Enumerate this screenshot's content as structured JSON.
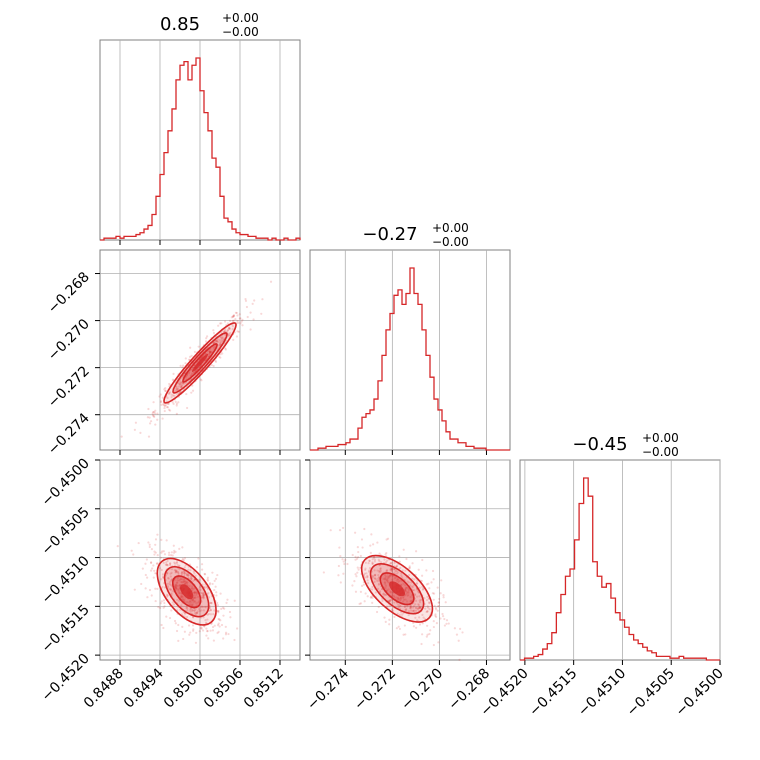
{
  "chart_data": {
    "type": "corner",
    "color": "#d62728",
    "parameters": [
      {
        "title_value": "0.85",
        "title_sup": "+0.00",
        "title_sub": "−0.00",
        "range": [
          0.8485,
          0.8515
        ],
        "ticks": [
          {
            "value": 0.8488,
            "label": "0.8488"
          },
          {
            "value": 0.8494,
            "label": "0.8494"
          },
          {
            "value": 0.85,
            "label": "0.8500"
          },
          {
            "value": 0.8506,
            "label": "0.8506"
          },
          {
            "value": 0.8512,
            "label": "0.8512"
          }
        ],
        "histogram": [
          0,
          1,
          1,
          1,
          2,
          1,
          2,
          2,
          2,
          3,
          4,
          6,
          8,
          14,
          24,
          36,
          48,
          60,
          72,
          88,
          96,
          98,
          88,
          96,
          100,
          82,
          70,
          60,
          45,
          40,
          24,
          12,
          10,
          6,
          4,
          3,
          3,
          2,
          2,
          1,
          1,
          1,
          0,
          1,
          0,
          0,
          1,
          0,
          0,
          1
        ]
      },
      {
        "title_value": "−0.27",
        "title_sup": "+0.00",
        "title_sub": "−0.00",
        "range": [
          -0.2755,
          -0.267
        ],
        "ticks": [
          {
            "value": -0.274,
            "label": "−0.274"
          },
          {
            "value": -0.272,
            "label": "−0.272"
          },
          {
            "value": -0.27,
            "label": "−0.270"
          },
          {
            "value": -0.268,
            "label": "−0.268"
          }
        ],
        "histogram": [
          0,
          0,
          1,
          1,
          2,
          2,
          2,
          3,
          3,
          4,
          6,
          6,
          12,
          18,
          20,
          22,
          28,
          38,
          52,
          66,
          75,
          85,
          88,
          80,
          86,
          100,
          86,
          80,
          66,
          52,
          40,
          28,
          22,
          16,
          10,
          6,
          6,
          4,
          4,
          2,
          2,
          1,
          1,
          1,
          0,
          0,
          0,
          0,
          0,
          0
        ]
      },
      {
        "title_value": "−0.45",
        "title_sup": "+0.00",
        "title_sub": "−0.00",
        "range": [
          -0.45205,
          -0.45
        ],
        "ticks": [
          {
            "value": -0.452,
            "label": "−0.4520"
          },
          {
            "value": -0.4515,
            "label": "−0.4515"
          },
          {
            "value": -0.451,
            "label": "−0.4510"
          },
          {
            "value": -0.4505,
            "label": "−0.4505"
          },
          {
            "value": -0.45,
            "label": "−0.4500"
          }
        ],
        "histogram": [
          0,
          1,
          1,
          2,
          3,
          6,
          9,
          15,
          26,
          36,
          46,
          50,
          66,
          86,
          100,
          90,
          54,
          46,
          40,
          42,
          34,
          26,
          22,
          18,
          14,
          11,
          9,
          7,
          5,
          4,
          2,
          2,
          2,
          1,
          1,
          2,
          1,
          1,
          1,
          1,
          1,
          0,
          0,
          0
        ]
      }
    ],
    "pairs": [
      {
        "x": 0,
        "y": 1,
        "center": [
          0.85,
          -0.2718
        ],
        "sd": [
          0.00027,
          0.00085
        ],
        "corr": 0.95
      },
      {
        "x": 0,
        "y": 2,
        "center": [
          0.8498,
          -0.45135
        ],
        "sd": [
          0.00022,
          0.00017
        ],
        "corr": -0.55
      },
      {
        "x": 1,
        "y": 2,
        "center": [
          -0.2718,
          -0.45132
        ],
        "sd": [
          0.00075,
          0.00017
        ],
        "corr": -0.6
      }
    ],
    "grid": true
  }
}
